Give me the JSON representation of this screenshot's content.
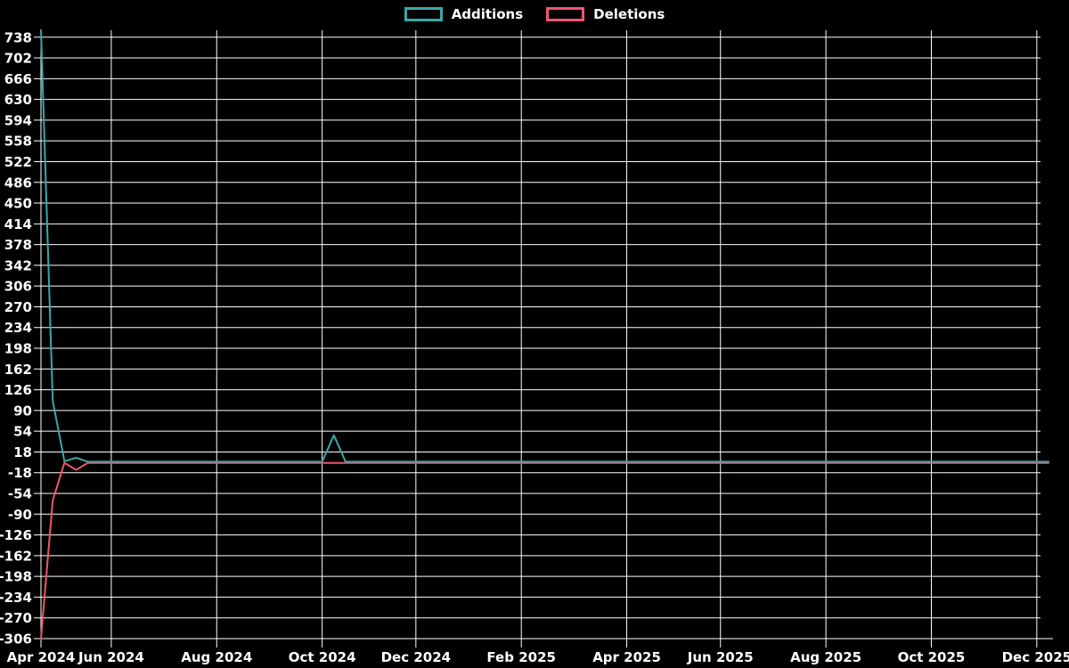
{
  "legend": {
    "additions_label": "Additions",
    "deletions_label": "Deletions"
  },
  "colors": {
    "additions": "#3aa8a8",
    "deletions": "#ef5670",
    "grid": "#ffffff",
    "text": "#ffffff",
    "background": "#000000"
  },
  "chart_data": {
    "type": "line",
    "title": "",
    "legend_position": "top-center",
    "grid": true,
    "x_axis": {
      "unit": "week",
      "week_count": 87,
      "tick_weeks": [
        0,
        6,
        15,
        24,
        32,
        41,
        50,
        58,
        67,
        76,
        85
      ],
      "tick_labels": [
        "Apr 2024",
        "Jun 2024",
        "Aug 2024",
        "Oct 2024",
        "Dec 2024",
        "Feb 2025",
        "Apr 2025",
        "Jun 2025",
        "Aug 2025",
        "Oct 2025",
        "Dec 2025"
      ]
    },
    "y_axis": {
      "min": -306,
      "max": 750,
      "tick_step": 36,
      "tick_values": [
        738,
        702,
        666,
        630,
        594,
        558,
        522,
        486,
        450,
        414,
        378,
        342,
        306,
        270,
        234,
        198,
        162,
        126,
        90,
        54,
        18,
        -18,
        -54,
        -90,
        -126,
        -162,
        -198,
        -234,
        -270,
        -306
      ]
    },
    "series": [
      {
        "name": "Additions",
        "color_key": "additions",
        "values": [
          750,
          107,
          2,
          8,
          1,
          1,
          1,
          1,
          1,
          1,
          1,
          1,
          1,
          1,
          1,
          1,
          1,
          1,
          1,
          1,
          1,
          1,
          1,
          1,
          1,
          47,
          1,
          1,
          1,
          1,
          1,
          1,
          1,
          1,
          1,
          1,
          1,
          1,
          1,
          1,
          1,
          1,
          1,
          1,
          1,
          1,
          1,
          1,
          1,
          1,
          1,
          1,
          1,
          1,
          1,
          1,
          1,
          1,
          1,
          1,
          1,
          1,
          1,
          1,
          1,
          1,
          1,
          1,
          1,
          1,
          1,
          1,
          1,
          1,
          1,
          1,
          1,
          1,
          1,
          1,
          1,
          1,
          1,
          1,
          1,
          1,
          1
        ]
      },
      {
        "name": "Deletions",
        "color_key": "deletions",
        "values": [
          -306,
          -66,
          -1,
          -13,
          -1,
          -1,
          -1,
          -1,
          -1,
          -1,
          -1,
          -1,
          -1,
          -1,
          -1,
          -1,
          -1,
          -1,
          -1,
          -1,
          -1,
          -1,
          -1,
          -1,
          -1,
          -1,
          -1,
          -1,
          -1,
          -1,
          -1,
          -1,
          -1,
          -1,
          -1,
          -1,
          -1,
          -1,
          -1,
          -1,
          -1,
          -1,
          -1,
          -1,
          -1,
          -1,
          -1,
          -1,
          -1,
          -1,
          -1,
          -1,
          -1,
          -1,
          -1,
          -1,
          -1,
          -1,
          -1,
          -1,
          -1,
          -1,
          -1,
          -1,
          -1,
          -1,
          -1,
          -1,
          -1,
          -1,
          -1,
          -1,
          -1,
          -1,
          -1,
          -1,
          -1,
          -1,
          -1,
          -1,
          -1,
          -1,
          -1,
          -1,
          -1,
          -1,
          -1
        ]
      }
    ]
  }
}
